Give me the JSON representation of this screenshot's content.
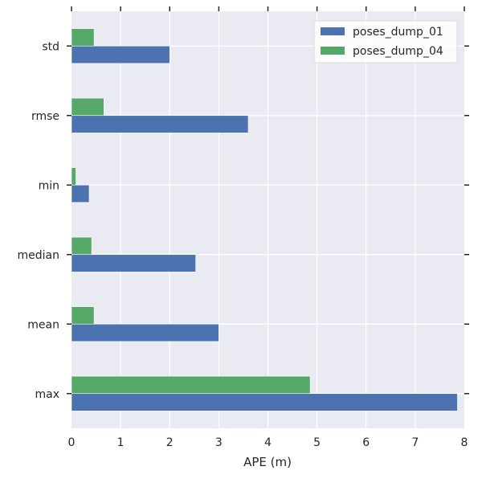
{
  "chart_data": {
    "type": "bar",
    "orientation": "horizontal",
    "categories": [
      "max",
      "mean",
      "median",
      "min",
      "rmse",
      "std"
    ],
    "series": [
      {
        "name": "poses_dump_01",
        "color": "#4c72b0",
        "values": [
          7.86,
          3.0,
          2.53,
          0.36,
          3.6,
          2.0
        ]
      },
      {
        "name": "poses_dump_04",
        "color": "#55a868",
        "values": [
          4.86,
          0.46,
          0.41,
          0.09,
          0.66,
          0.46
        ]
      }
    ],
    "xlabel": "APE (m)",
    "ylabel": "",
    "xlim": [
      0,
      8
    ],
    "xticks": [
      "0",
      "1",
      "2",
      "3",
      "4",
      "5",
      "6",
      "7",
      "8"
    ],
    "grid": true,
    "background": "#eaeaf2",
    "legend_position": "top-right"
  }
}
